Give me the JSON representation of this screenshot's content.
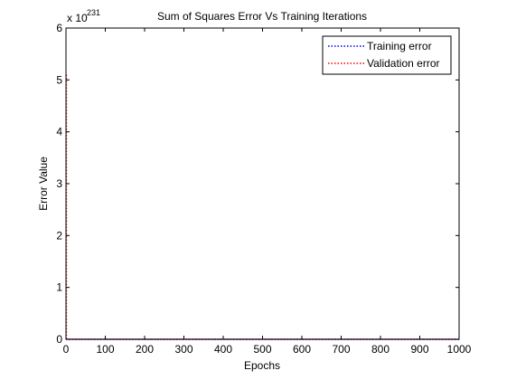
{
  "chart_data": {
    "type": "line",
    "title": "Sum of Squares Error Vs Training Iterations",
    "xlabel": "Epochs",
    "ylabel": "Error Value",
    "exponent_label": {
      "base": "x 10",
      "power": "231"
    },
    "xlim": [
      0,
      1000
    ],
    "ylim": [
      0,
      6
    ],
    "x_ticks": [
      0,
      100,
      200,
      300,
      400,
      500,
      600,
      700,
      800,
      900,
      1000
    ],
    "y_ticks": [
      0,
      1,
      2,
      3,
      4,
      5,
      6
    ],
    "grid": false,
    "legend_position": "top-right",
    "series": [
      {
        "name": "Training error",
        "color": "#0000ff",
        "style": "dotted",
        "x": [
          0,
          1,
          2,
          3,
          4,
          5,
          1000
        ],
        "y": [
          0,
          0,
          0,
          0,
          0,
          0,
          0
        ]
      },
      {
        "name": "Validation error",
        "color": "#ff0000",
        "style": "dotted",
        "x": [
          1,
          1,
          2,
          3,
          1000
        ],
        "y": [
          5.1,
          0,
          0,
          0,
          0
        ]
      }
    ]
  }
}
